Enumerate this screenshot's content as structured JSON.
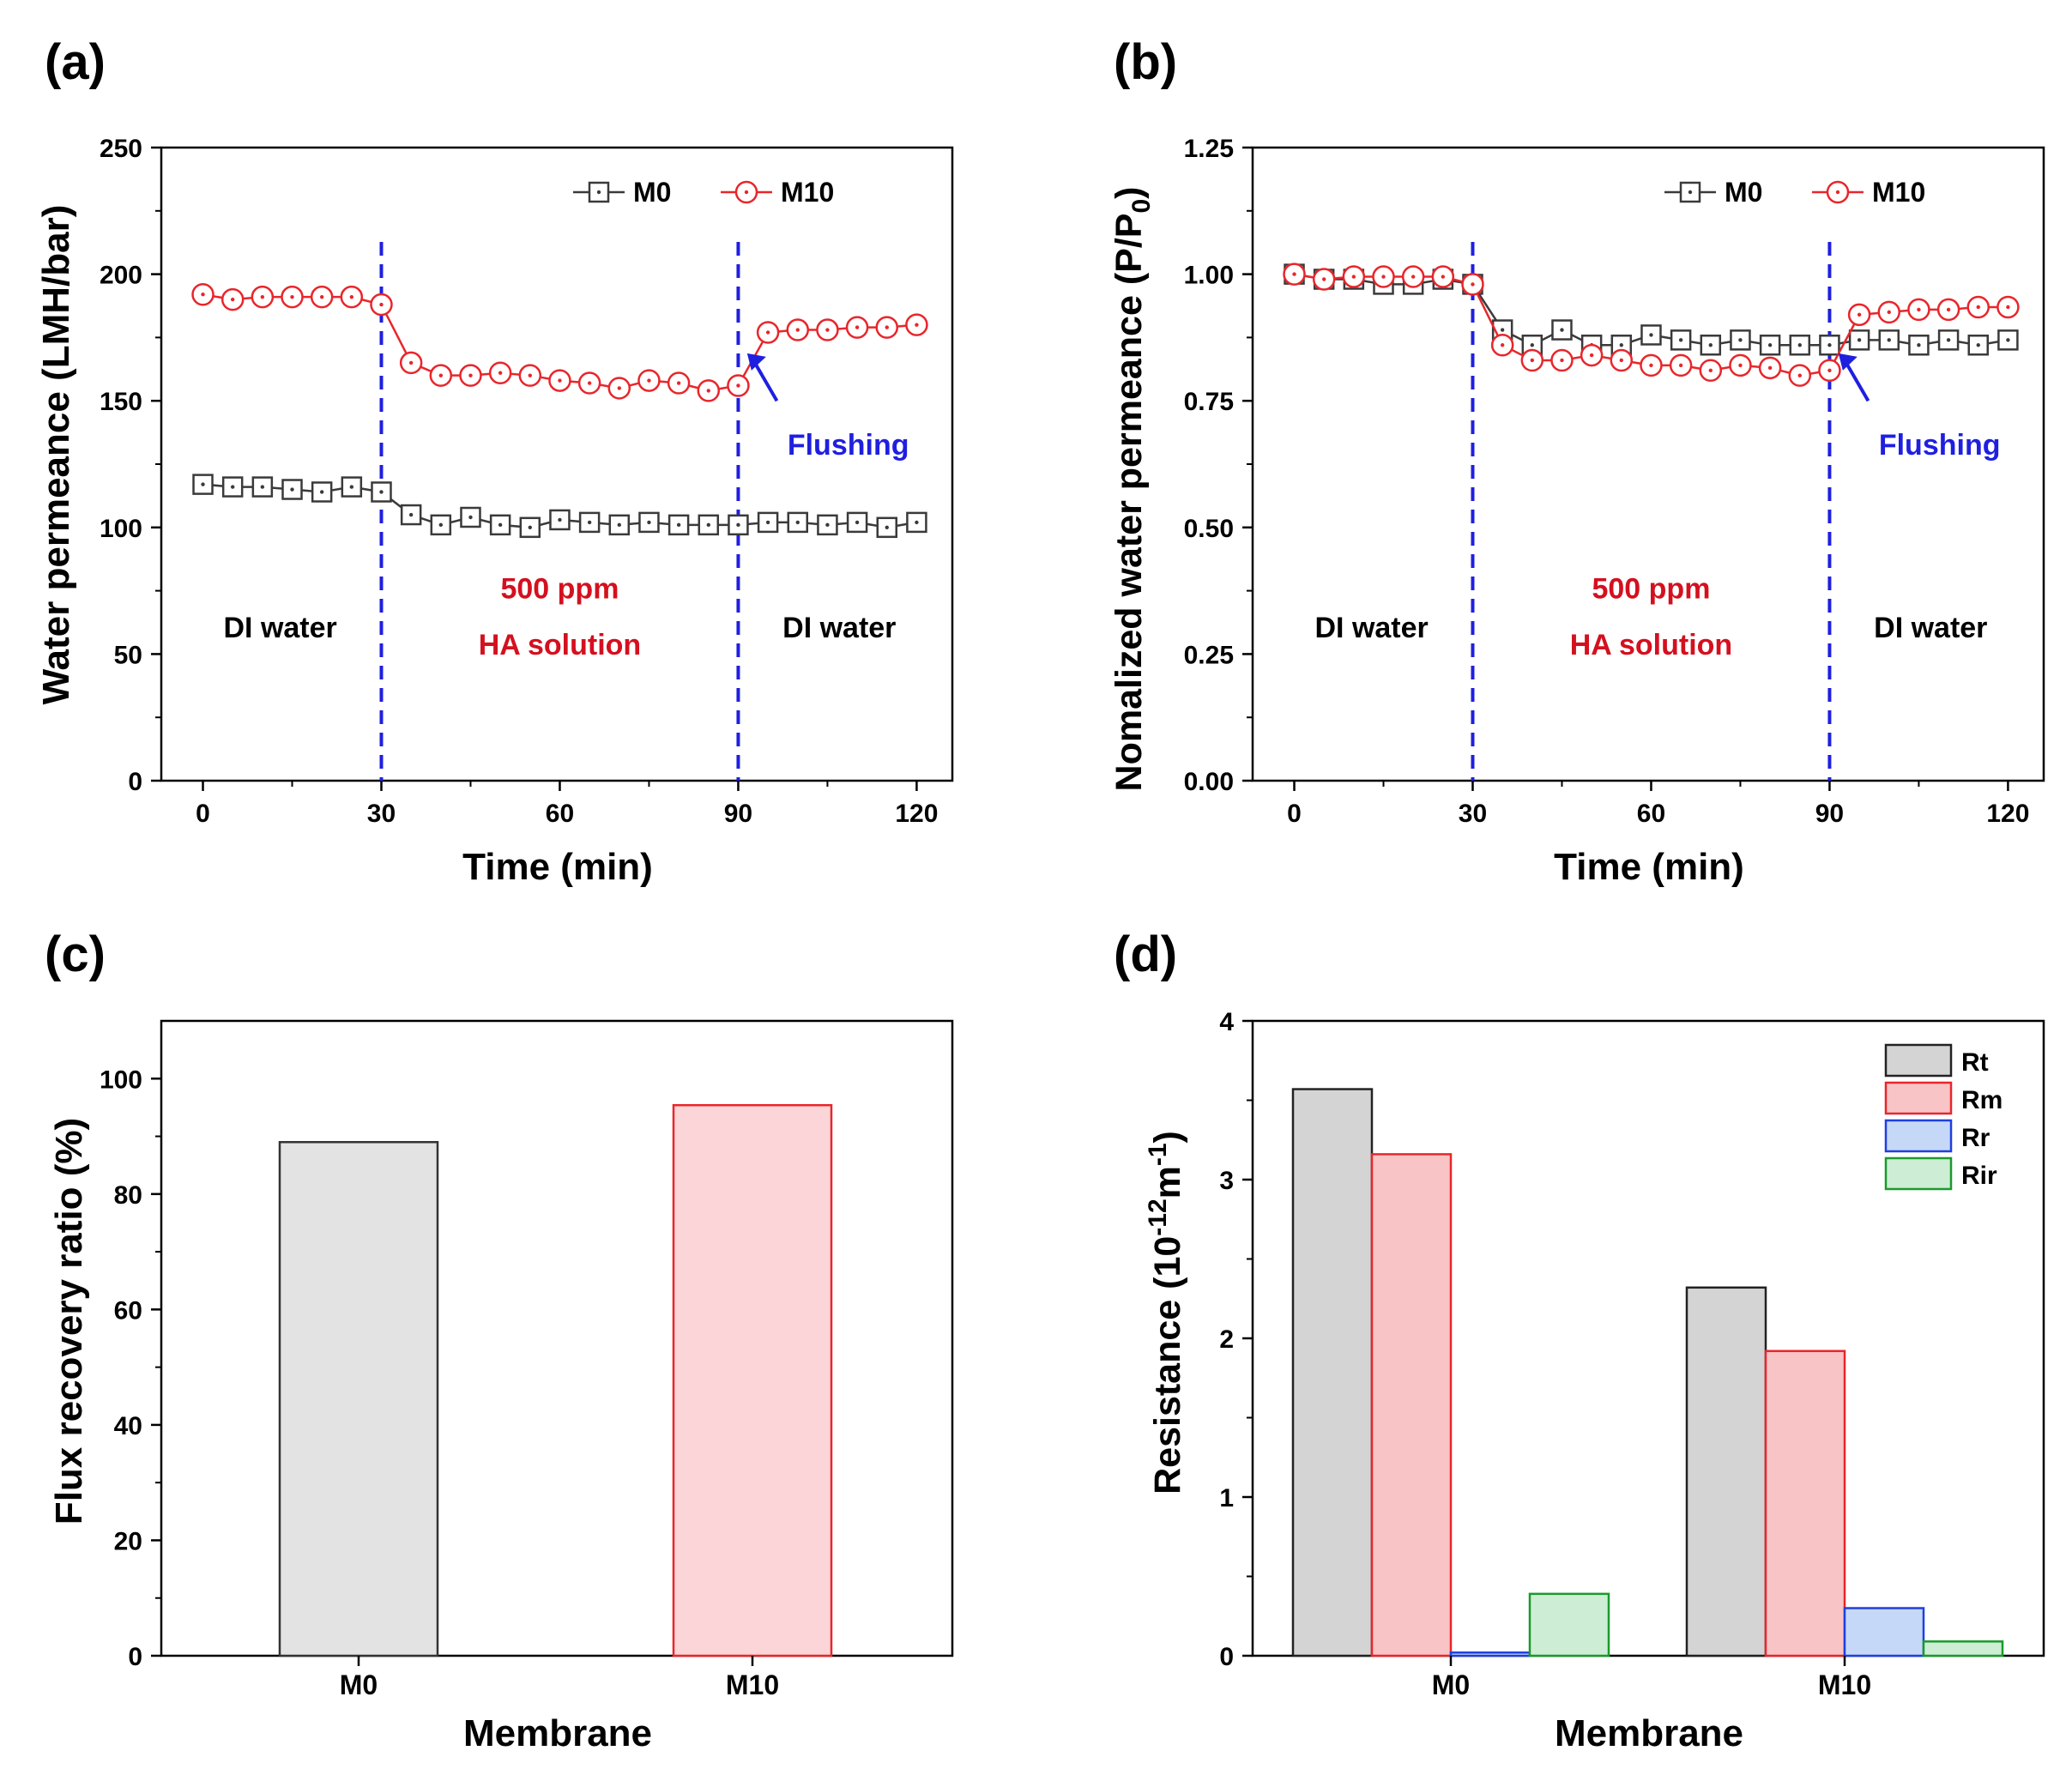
{
  "chart_data": [
    {
      "panel_label": "(a)",
      "type": "line",
      "title": "",
      "xlabel": "Time (min)",
      "ylabel": "Water permeance (LMH/bar)",
      "xlim": [
        -7,
        126
      ],
      "ylim": [
        0,
        250
      ],
      "xticks": [
        0,
        30,
        60,
        90,
        120
      ],
      "yticks": [
        0,
        50,
        100,
        150,
        200,
        250
      ],
      "x": [
        0,
        5,
        10,
        15,
        20,
        25,
        30,
        35,
        40,
        45,
        50,
        55,
        60,
        65,
        70,
        75,
        80,
        85,
        90,
        95,
        100,
        105,
        110,
        115,
        120
      ],
      "series": [
        {
          "name": "M0",
          "color": "#3a3a3a",
          "marker": "square",
          "values": [
            117,
            116,
            116,
            115,
            114,
            116,
            114,
            105,
            101,
            104,
            101,
            100,
            103,
            102,
            101,
            102,
            101,
            101,
            101,
            102,
            102,
            101,
            102,
            100,
            102
          ]
        },
        {
          "name": "M10",
          "color": "#e8262b",
          "marker": "circle",
          "values": [
            192,
            190,
            191,
            191,
            191,
            191,
            188,
            165,
            160,
            160,
            161,
            160,
            158,
            157,
            155,
            158,
            157,
            154,
            156,
            177,
            178,
            178,
            179,
            179,
            180
          ]
        }
      ],
      "vlines": [
        30,
        90
      ],
      "legend_position": "top-right",
      "annotations": {
        "di_left": "DI water",
        "ha_line1": "500 ppm",
        "ha_line2": "HA solution",
        "di_right": "DI water",
        "flushing": "Flushing"
      }
    },
    {
      "panel_label": "(b)",
      "type": "line",
      "title": "",
      "xlabel": "Time (min)",
      "ylabel": "Nomalized water permeance (P/P0)",
      "ylabel_main": "Nomalized water permeance (P/P",
      "ylabel_sub": "0",
      "ylabel_end": ")",
      "xlim": [
        -7,
        126
      ],
      "ylim": [
        0,
        1.25
      ],
      "xticks": [
        0,
        30,
        60,
        90,
        120
      ],
      "yticks": [
        "0.00",
        "0.25",
        "0.50",
        "0.75",
        "1.00",
        "1.25"
      ],
      "x": [
        0,
        5,
        10,
        15,
        20,
        25,
        30,
        35,
        40,
        45,
        50,
        55,
        60,
        65,
        70,
        75,
        80,
        85,
        90,
        95,
        100,
        105,
        110,
        115,
        120
      ],
      "series": [
        {
          "name": "M0",
          "color": "#3a3a3a",
          "marker": "square",
          "values": [
            1.0,
            0.99,
            0.99,
            0.98,
            0.98,
            0.99,
            0.98,
            0.89,
            0.86,
            0.89,
            0.86,
            0.86,
            0.88,
            0.87,
            0.86,
            0.87,
            0.86,
            0.86,
            0.86,
            0.87,
            0.87,
            0.86,
            0.87,
            0.86,
            0.87
          ]
        },
        {
          "name": "M10",
          "color": "#e8262b",
          "marker": "circle",
          "values": [
            1.0,
            0.99,
            0.995,
            0.995,
            0.995,
            0.995,
            0.98,
            0.86,
            0.83,
            0.83,
            0.84,
            0.83,
            0.82,
            0.82,
            0.81,
            0.82,
            0.815,
            0.8,
            0.81,
            0.92,
            0.925,
            0.93,
            0.93,
            0.935,
            0.935
          ]
        }
      ],
      "vlines": [
        30,
        90
      ],
      "legend_position": "top-right",
      "annotations": {
        "di_left": "DI water",
        "ha_line1": "500 ppm",
        "ha_line2": "HA solution",
        "di_right": "DI water",
        "flushing": "Flushing"
      }
    },
    {
      "panel_label": "(c)",
      "type": "bar",
      "title": "",
      "xlabel": "Membrane",
      "ylabel": "Flux recovery ratio (%)",
      "ylim": [
        0,
        110
      ],
      "yticks": [
        0,
        20,
        40,
        60,
        80,
        100
      ],
      "categories": [
        "M0",
        "M10"
      ],
      "values": [
        89,
        95.4
      ],
      "fill_colors": [
        "#e3e3e3",
        "#fbd5d7"
      ],
      "edge_colors": [
        "#333333",
        "#e8262b"
      ]
    },
    {
      "panel_label": "(d)",
      "type": "bar",
      "title": "",
      "xlabel": "Membrane",
      "ylabel": "Resistance (10-12m-1)",
      "ylabel_parts": {
        "a": "Resistance (10",
        "b": "-12",
        "c": "m",
        "d": "-1",
        "e": ")"
      },
      "ylim": [
        0,
        4
      ],
      "yticks": [
        0,
        1,
        2,
        3,
        4
      ],
      "categories": [
        "M0",
        "M10"
      ],
      "series": [
        {
          "name": "Rt",
          "fill": "#d4d4d4",
          "edge": "#222222",
          "values": [
            3.57,
            2.32
          ]
        },
        {
          "name": "Rm",
          "fill": "#f9c4c6",
          "edge": "#e8262b",
          "values": [
            3.16,
            1.92
          ]
        },
        {
          "name": "Rr",
          "fill": "#c6d8f8",
          "edge": "#1f3fe0",
          "values": [
            0.02,
            0.3
          ]
        },
        {
          "name": "Rir",
          "fill": "#cdeed5",
          "edge": "#1a9a2c",
          "values": [
            0.39,
            0.09
          ]
        }
      ],
      "legend_position": "top-right"
    }
  ]
}
